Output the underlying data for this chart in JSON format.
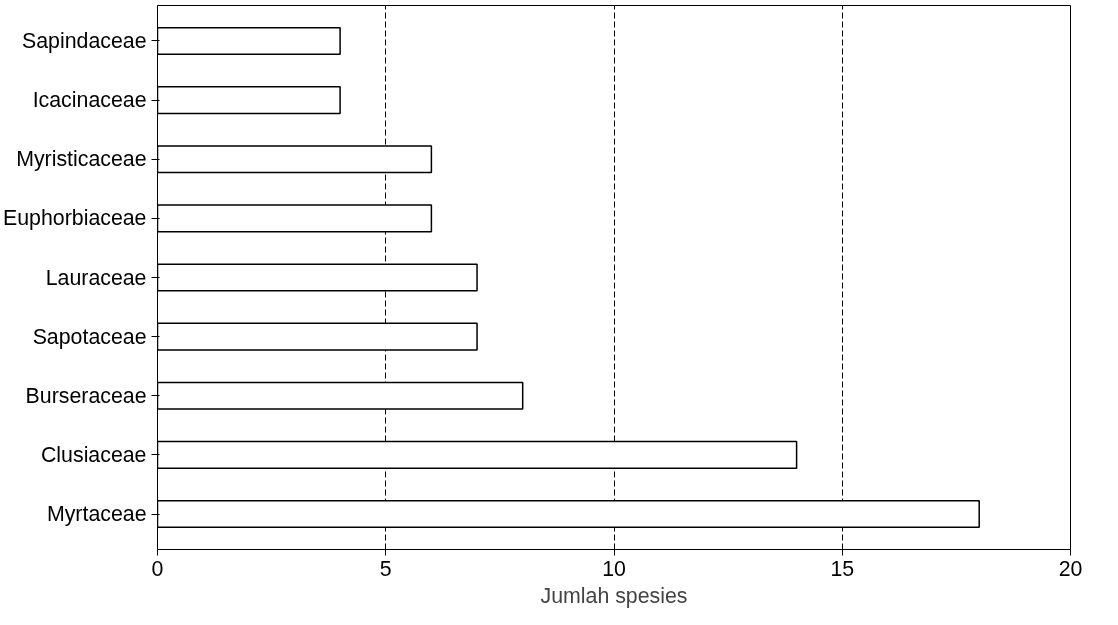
{
  "chart_data": {
    "type": "bar",
    "orientation": "horizontal",
    "xlabel": "Jumlah spesies",
    "categories": [
      "Sapindaceae",
      "Icacinaceae",
      "Myristicaceae",
      "Euphorbiaceae",
      "Lauraceae",
      "Sapotaceae",
      "Burseraceae",
      "Clusiaceae",
      "Myrtaceae"
    ],
    "values": [
      4,
      4,
      6,
      6,
      7,
      7,
      8,
      14,
      18
    ],
    "color": "#ffffff",
    "xlim": [
      0,
      20
    ],
    "xticks": [
      0,
      5,
      10,
      15,
      20
    ],
    "grid": "x"
  }
}
